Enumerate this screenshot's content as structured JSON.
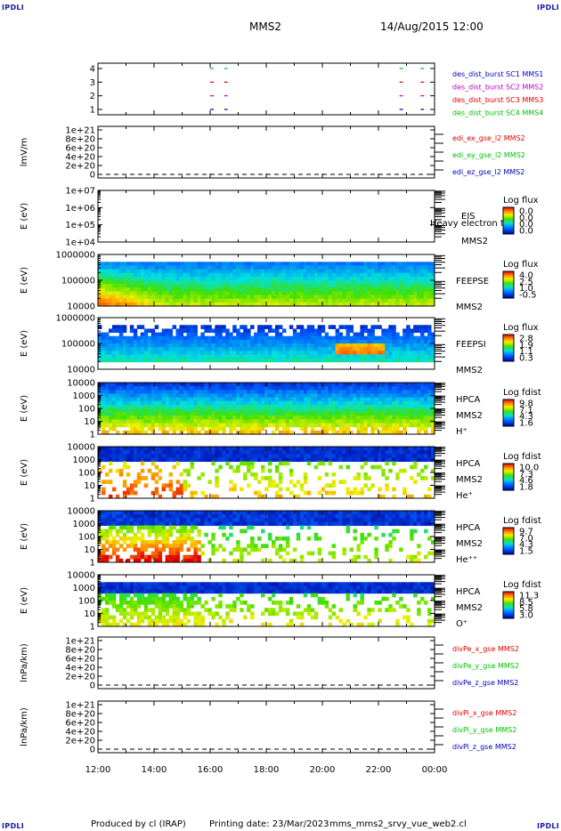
{
  "corners": {
    "tl": "IPDLI",
    "tr": "IPDLI",
    "bl": "IPDLI",
    "br": "IPDLI"
  },
  "header": {
    "spacecraft": "MMS2",
    "datetime": "14/Aug/2015 12:00"
  },
  "footer": {
    "produced_by": "Produced by cl (IRAP)",
    "printing_date": "Printing date: 23/Mar/2023",
    "filename": "mms_mms2_srvy_vue_web2.cl"
  },
  "colors": {
    "red": "#e00000",
    "green": "#00c000",
    "blue": "#0000c0",
    "magenta": "#c000c0"
  },
  "chart_data": {
    "type": "heatmap",
    "x_ticks": [
      "12:00",
      "14:00",
      "16:00",
      "18:00",
      "20:00",
      "22:00",
      "00:00"
    ],
    "panels": [
      {
        "id": "burst",
        "kind": "burst",
        "y_ticks": [
          "4",
          "3",
          "2",
          "1"
        ],
        "labels": [
          {
            "text": "des_dist_burst SC1 MMS1",
            "color": "#0000c0"
          },
          {
            "text": "des_dist_burst SC2 MMS2",
            "color": "#c000c0"
          },
          {
            "text": "des_dist_burst SC3 MMS3",
            "color": "#e00000"
          },
          {
            "text": "des_dist_burst SC4 MMS4",
            "color": "#00c000"
          }
        ],
        "burst_times": [
          "16:00",
          "16:30",
          "22:45",
          "23:30"
        ]
      },
      {
        "id": "edi",
        "kind": "line",
        "ylabel": "lmV/m",
        "y_ticks": [
          "1e+21",
          "8e+20",
          "6e+20",
          "4e+20",
          "2e+20",
          "0"
        ],
        "labels": [
          {
            "text": "edi_ex_gse_l2 MMS2",
            "color": "#e00000"
          },
          {
            "text": "edi_ey_gse_l2 MMS2",
            "color": "#00c000"
          },
          {
            "text": "edi_ez_gse_l2 MMS2",
            "color": "#0000c0"
          }
        ]
      },
      {
        "id": "eis",
        "kind": "empty_spec",
        "ylabel": "E (eV)",
        "y_ticks": [
          "1e+07",
          "1e+06",
          "1e+05",
          "1e+04"
        ],
        "side": [
          "EIS",
          "Heavy electron to",
          "MMS2"
        ],
        "cbar_title": "Log flux",
        "cbar_ticks": [
          "0.0",
          "0.0",
          "0.0",
          "0.0"
        ]
      },
      {
        "id": "feepse",
        "kind": "spec",
        "ylabel": "E (eV)",
        "y_ticks": [
          "1000000",
          "100000",
          "10000"
        ],
        "side": [
          "FEEPSE",
          "MMS2"
        ],
        "cbar_title": "Log flux",
        "cbar_ticks": [
          "4.0",
          "2.5",
          "1.0",
          "-0.5"
        ]
      },
      {
        "id": "feepsi",
        "kind": "spec",
        "ylabel": "E (eV)",
        "y_ticks": [
          "1000000",
          "100000",
          "10000"
        ],
        "side": [
          "FEEPSI",
          "MMS2"
        ],
        "cbar_title": "Log flux",
        "cbar_ticks": [
          "2.8",
          "1.9",
          "1.1",
          "0.3"
        ]
      },
      {
        "id": "hpca_h",
        "kind": "spec",
        "ylabel": "E (eV)",
        "y_ticks": [
          "10000",
          "1000",
          "100",
          "10",
          "1"
        ],
        "side": [
          "HPCA",
          "MMS2",
          "H⁺"
        ],
        "cbar_title": "Log fdist",
        "cbar_ticks": [
          "9.8",
          "7.1",
          "4.3",
          "1.6"
        ]
      },
      {
        "id": "hpca_he",
        "kind": "spec",
        "ylabel": "E (eV)",
        "y_ticks": [
          "10000",
          "1000",
          "100",
          "10",
          "1"
        ],
        "side": [
          "HPCA",
          "MMS2",
          "He⁺"
        ],
        "cbar_title": "Log fdist",
        "cbar_ticks": [
          "10.0",
          "7.3",
          "4.6",
          "1.8"
        ]
      },
      {
        "id": "hpca_hepp",
        "kind": "spec",
        "ylabel": "E (eV)",
        "y_ticks": [
          "10000",
          "1000",
          "100",
          "10",
          "1"
        ],
        "side": [
          "HPCA",
          "MMS2",
          "He⁺⁺"
        ],
        "cbar_title": "Log fdist",
        "cbar_ticks": [
          "9.7",
          "7.0",
          "4.3",
          "1.5"
        ]
      },
      {
        "id": "hpca_o",
        "kind": "spec",
        "ylabel": "E (eV)",
        "y_ticks": [
          "10000",
          "1000",
          "100",
          "10",
          "1"
        ],
        "side": [
          "HPCA",
          "MMS2",
          "O⁺"
        ],
        "cbar_title": "Log fdist",
        "cbar_ticks": [
          "11.3",
          "8.5",
          "5.8",
          "3.0"
        ]
      },
      {
        "id": "divpe",
        "kind": "line",
        "ylabel": "lnPa/km)",
        "y_ticks": [
          "1e+21",
          "8e+20",
          "6e+20",
          "4e+20",
          "2e+20",
          "0"
        ],
        "labels": [
          {
            "text": "divPe_x_gse MMS2",
            "color": "#e00000"
          },
          {
            "text": "divPe_y_gse MMS2",
            "color": "#00c000"
          },
          {
            "text": "divPe_z_gse MMS2",
            "color": "#0000c0"
          }
        ]
      },
      {
        "id": "divpi",
        "kind": "line",
        "ylabel": "lnPa/km)",
        "y_ticks": [
          "1e+21",
          "8e+20",
          "6e+20",
          "4e+20",
          "2e+20",
          "0"
        ],
        "labels": [
          {
            "text": "divPi_x_gse MMS2",
            "color": "#e00000"
          },
          {
            "text": "divPi_y_gse MMS2",
            "color": "#00c000"
          },
          {
            "text": "divPi_z_gse MMS2",
            "color": "#0000c0"
          }
        ]
      }
    ]
  }
}
